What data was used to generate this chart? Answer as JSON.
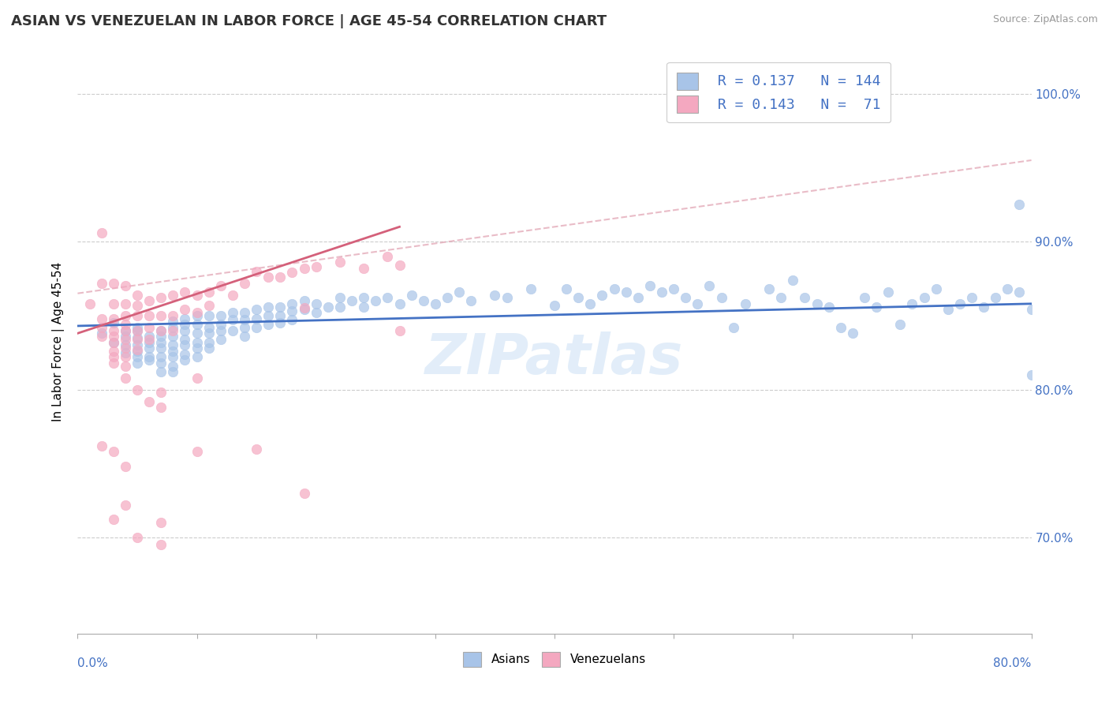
{
  "title": "ASIAN VS VENEZUELAN IN LABOR FORCE | AGE 45-54 CORRELATION CHART",
  "source": "Source: ZipAtlas.com",
  "ylabel": "In Labor Force | Age 45-54",
  "ytick_values": [
    0.7,
    0.8,
    0.9,
    1.0
  ],
  "xlim": [
    0.0,
    0.8
  ],
  "ylim": [
    0.635,
    1.03
  ],
  "legend_asian_R": 0.137,
  "legend_asian_N": 144,
  "legend_venezuelan_R": 0.143,
  "legend_venezuelan_N": 71,
  "asian_color": "#a8c4e8",
  "venezuelan_color": "#f4a8c0",
  "asian_line_color": "#4472c4",
  "venezuelan_line_color": "#d4607a",
  "dashed_line_color": "#e0a0b0",
  "watermark_text": "ZIPatlas",
  "asian_line": [
    0.0,
    0.843,
    0.8,
    0.858
  ],
  "venezuelan_line": [
    0.0,
    0.838,
    0.27,
    0.91
  ],
  "dashed_line": [
    0.0,
    0.865,
    0.8,
    0.955
  ],
  "asian_scatter": [
    [
      0.02,
      0.838
    ],
    [
      0.03,
      0.845
    ],
    [
      0.03,
      0.832
    ],
    [
      0.04,
      0.84
    ],
    [
      0.04,
      0.836
    ],
    [
      0.04,
      0.83
    ],
    [
      0.04,
      0.825
    ],
    [
      0.05,
      0.84
    ],
    [
      0.05,
      0.835
    ],
    [
      0.05,
      0.83
    ],
    [
      0.05,
      0.826
    ],
    [
      0.05,
      0.822
    ],
    [
      0.05,
      0.818
    ],
    [
      0.05,
      0.842
    ],
    [
      0.06,
      0.836
    ],
    [
      0.06,
      0.832
    ],
    [
      0.06,
      0.828
    ],
    [
      0.06,
      0.822
    ],
    [
      0.06,
      0.82
    ],
    [
      0.07,
      0.84
    ],
    [
      0.07,
      0.836
    ],
    [
      0.07,
      0.832
    ],
    [
      0.07,
      0.828
    ],
    [
      0.07,
      0.822
    ],
    [
      0.07,
      0.818
    ],
    [
      0.07,
      0.812
    ],
    [
      0.08,
      0.846
    ],
    [
      0.08,
      0.842
    ],
    [
      0.08,
      0.836
    ],
    [
      0.08,
      0.83
    ],
    [
      0.08,
      0.826
    ],
    [
      0.08,
      0.822
    ],
    [
      0.08,
      0.816
    ],
    [
      0.08,
      0.812
    ],
    [
      0.09,
      0.848
    ],
    [
      0.09,
      0.844
    ],
    [
      0.09,
      0.84
    ],
    [
      0.09,
      0.834
    ],
    [
      0.09,
      0.83
    ],
    [
      0.09,
      0.824
    ],
    [
      0.09,
      0.82
    ],
    [
      0.1,
      0.85
    ],
    [
      0.1,
      0.844
    ],
    [
      0.1,
      0.838
    ],
    [
      0.1,
      0.832
    ],
    [
      0.1,
      0.828
    ],
    [
      0.1,
      0.822
    ],
    [
      0.11,
      0.85
    ],
    [
      0.11,
      0.842
    ],
    [
      0.11,
      0.838
    ],
    [
      0.11,
      0.832
    ],
    [
      0.11,
      0.828
    ],
    [
      0.12,
      0.85
    ],
    [
      0.12,
      0.844
    ],
    [
      0.12,
      0.84
    ],
    [
      0.12,
      0.834
    ],
    [
      0.13,
      0.852
    ],
    [
      0.13,
      0.847
    ],
    [
      0.13,
      0.84
    ],
    [
      0.14,
      0.852
    ],
    [
      0.14,
      0.847
    ],
    [
      0.14,
      0.842
    ],
    [
      0.14,
      0.836
    ],
    [
      0.15,
      0.854
    ],
    [
      0.15,
      0.848
    ],
    [
      0.15,
      0.842
    ],
    [
      0.16,
      0.856
    ],
    [
      0.16,
      0.85
    ],
    [
      0.16,
      0.844
    ],
    [
      0.17,
      0.856
    ],
    [
      0.17,
      0.85
    ],
    [
      0.17,
      0.845
    ],
    [
      0.18,
      0.858
    ],
    [
      0.18,
      0.853
    ],
    [
      0.18,
      0.847
    ],
    [
      0.19,
      0.86
    ],
    [
      0.19,
      0.854
    ],
    [
      0.2,
      0.858
    ],
    [
      0.2,
      0.852
    ],
    [
      0.21,
      0.856
    ],
    [
      0.22,
      0.862
    ],
    [
      0.22,
      0.856
    ],
    [
      0.23,
      0.86
    ],
    [
      0.24,
      0.862
    ],
    [
      0.24,
      0.856
    ],
    [
      0.25,
      0.86
    ],
    [
      0.26,
      0.862
    ],
    [
      0.27,
      0.858
    ],
    [
      0.28,
      0.864
    ],
    [
      0.29,
      0.86
    ],
    [
      0.3,
      0.858
    ],
    [
      0.31,
      0.862
    ],
    [
      0.32,
      0.866
    ],
    [
      0.33,
      0.86
    ],
    [
      0.35,
      0.864
    ],
    [
      0.36,
      0.862
    ],
    [
      0.38,
      0.868
    ],
    [
      0.4,
      0.857
    ],
    [
      0.41,
      0.868
    ],
    [
      0.42,
      0.862
    ],
    [
      0.43,
      0.858
    ],
    [
      0.44,
      0.864
    ],
    [
      0.45,
      0.868
    ],
    [
      0.46,
      0.866
    ],
    [
      0.47,
      0.862
    ],
    [
      0.48,
      0.87
    ],
    [
      0.49,
      0.866
    ],
    [
      0.5,
      0.868
    ],
    [
      0.51,
      0.862
    ],
    [
      0.52,
      0.858
    ],
    [
      0.53,
      0.87
    ],
    [
      0.54,
      0.862
    ],
    [
      0.55,
      0.842
    ],
    [
      0.56,
      0.858
    ],
    [
      0.58,
      0.868
    ],
    [
      0.59,
      0.862
    ],
    [
      0.6,
      0.874
    ],
    [
      0.61,
      0.862
    ],
    [
      0.62,
      0.858
    ],
    [
      0.63,
      0.856
    ],
    [
      0.64,
      0.842
    ],
    [
      0.65,
      0.838
    ],
    [
      0.66,
      0.862
    ],
    [
      0.67,
      0.856
    ],
    [
      0.68,
      0.866
    ],
    [
      0.69,
      0.844
    ],
    [
      0.7,
      0.858
    ],
    [
      0.71,
      0.862
    ],
    [
      0.72,
      0.868
    ],
    [
      0.73,
      0.854
    ],
    [
      0.74,
      0.858
    ],
    [
      0.75,
      0.862
    ],
    [
      0.76,
      0.856
    ],
    [
      0.77,
      0.862
    ],
    [
      0.78,
      0.868
    ],
    [
      0.79,
      0.866
    ],
    [
      0.8,
      0.854
    ],
    [
      0.79,
      0.925
    ],
    [
      0.8,
      0.81
    ]
  ],
  "venezuelan_scatter": [
    [
      0.01,
      0.858
    ],
    [
      0.02,
      0.906
    ],
    [
      0.02,
      0.872
    ],
    [
      0.02,
      0.848
    ],
    [
      0.02,
      0.842
    ],
    [
      0.02,
      0.836
    ],
    [
      0.03,
      0.872
    ],
    [
      0.03,
      0.858
    ],
    [
      0.03,
      0.848
    ],
    [
      0.03,
      0.84
    ],
    [
      0.03,
      0.836
    ],
    [
      0.03,
      0.832
    ],
    [
      0.03,
      0.826
    ],
    [
      0.03,
      0.822
    ],
    [
      0.03,
      0.818
    ],
    [
      0.04,
      0.87
    ],
    [
      0.04,
      0.858
    ],
    [
      0.04,
      0.85
    ],
    [
      0.04,
      0.844
    ],
    [
      0.04,
      0.84
    ],
    [
      0.04,
      0.834
    ],
    [
      0.04,
      0.828
    ],
    [
      0.04,
      0.822
    ],
    [
      0.04,
      0.816
    ],
    [
      0.05,
      0.864
    ],
    [
      0.05,
      0.857
    ],
    [
      0.05,
      0.85
    ],
    [
      0.05,
      0.84
    ],
    [
      0.05,
      0.834
    ],
    [
      0.05,
      0.827
    ],
    [
      0.06,
      0.86
    ],
    [
      0.06,
      0.85
    ],
    [
      0.06,
      0.842
    ],
    [
      0.06,
      0.834
    ],
    [
      0.07,
      0.862
    ],
    [
      0.07,
      0.85
    ],
    [
      0.07,
      0.84
    ],
    [
      0.08,
      0.864
    ],
    [
      0.08,
      0.85
    ],
    [
      0.08,
      0.84
    ],
    [
      0.09,
      0.866
    ],
    [
      0.09,
      0.854
    ],
    [
      0.1,
      0.864
    ],
    [
      0.1,
      0.852
    ],
    [
      0.11,
      0.866
    ],
    [
      0.11,
      0.857
    ],
    [
      0.12,
      0.87
    ],
    [
      0.13,
      0.864
    ],
    [
      0.14,
      0.872
    ],
    [
      0.15,
      0.88
    ],
    [
      0.16,
      0.876
    ],
    [
      0.17,
      0.876
    ],
    [
      0.18,
      0.879
    ],
    [
      0.19,
      0.882
    ],
    [
      0.2,
      0.883
    ],
    [
      0.22,
      0.886
    ],
    [
      0.24,
      0.882
    ],
    [
      0.26,
      0.89
    ],
    [
      0.27,
      0.884
    ],
    [
      0.04,
      0.808
    ],
    [
      0.05,
      0.8
    ],
    [
      0.06,
      0.792
    ],
    [
      0.07,
      0.798
    ],
    [
      0.07,
      0.788
    ],
    [
      0.1,
      0.808
    ],
    [
      0.19,
      0.855
    ],
    [
      0.27,
      0.84
    ],
    [
      0.03,
      0.758
    ],
    [
      0.04,
      0.748
    ],
    [
      0.05,
      0.7
    ],
    [
      0.07,
      0.71
    ],
    [
      0.07,
      0.695
    ],
    [
      0.1,
      0.758
    ],
    [
      0.15,
      0.76
    ],
    [
      0.19,
      0.73
    ],
    [
      0.02,
      0.762
    ],
    [
      0.03,
      0.712
    ],
    [
      0.04,
      0.722
    ]
  ]
}
